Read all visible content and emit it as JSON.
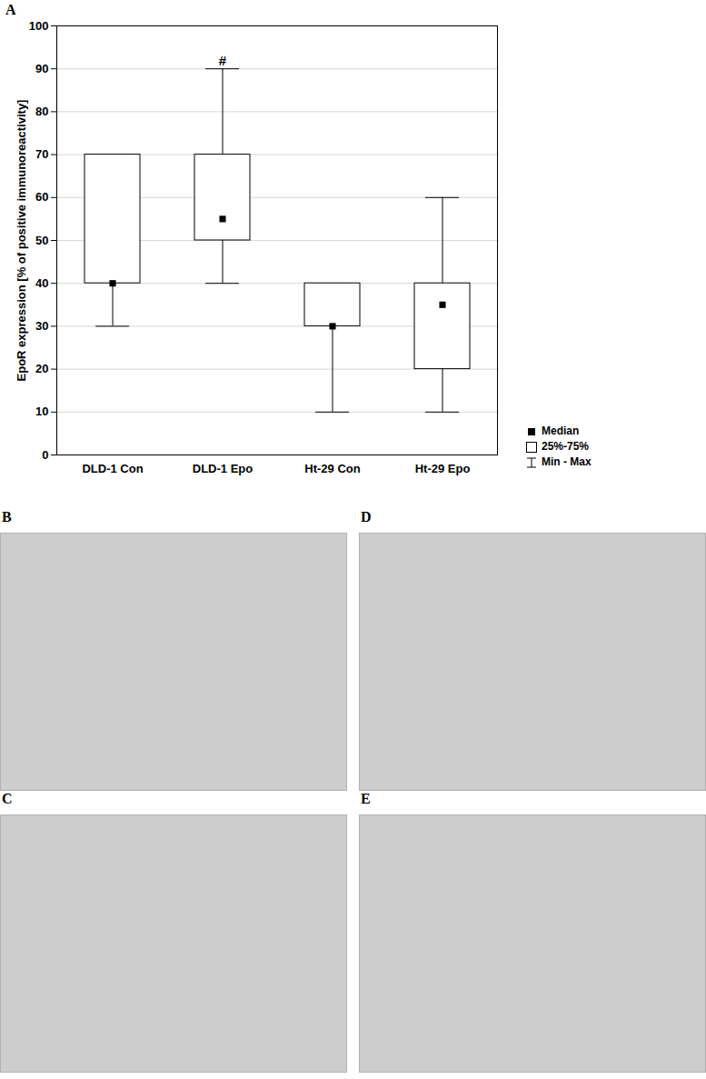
{
  "chart_data": {
    "type": "box",
    "panel_label": "A",
    "ylabel": "EpoR expression [% of positive immunoreactivity]",
    "categories": [
      "DLD-1 Con",
      "DLD-1 Epo",
      "Ht-29 Con",
      "Ht-29 Epo"
    ],
    "min": [
      30,
      40,
      10,
      10
    ],
    "q1": [
      40,
      50,
      30,
      20
    ],
    "median": [
      40,
      55,
      30,
      35
    ],
    "q3": [
      70,
      70,
      40,
      40
    ],
    "max": [
      70,
      90,
      40,
      60
    ],
    "annotations": [
      {
        "category": "DLD-1 Epo",
        "text": "#"
      }
    ],
    "ylim": [
      0,
      100
    ],
    "yticks": [
      0,
      10,
      20,
      30,
      40,
      50,
      60,
      70,
      80,
      90,
      100
    ],
    "grid": true,
    "legend": "bottom-right",
    "legend_entries": {
      "median": "Median",
      "box": "25%-75%",
      "whiskers": "Min - Max"
    }
  },
  "image_panels": [
    "B",
    "D",
    "C",
    "E"
  ]
}
